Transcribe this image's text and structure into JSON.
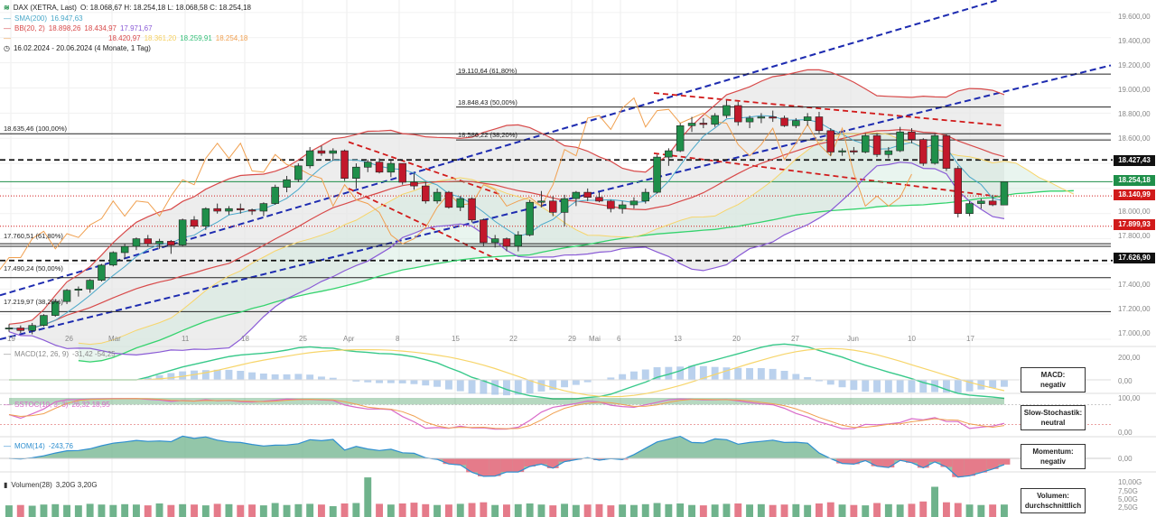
{
  "legend": {
    "title": "DAX (XETRA, Last)",
    "ohlc": "O: 18.068,67  H: 18.254,18  L: 18.068,58  C: 18.254,18",
    "sma": "SMA(200)",
    "sma_val": "16.947,63",
    "bb": "BB(20, 2)",
    "bb_vals": [
      "18.898,26",
      "18.434,97",
      "17.971,67"
    ],
    "ichimoku": [
      "18.420,97",
      "18.361,20",
      "18.259,91",
      "18.254,18"
    ],
    "range": "16.02.2024 - 20.06.2024 (4 Monate, 1 Tag)"
  },
  "panels": {
    "macd_legend": "MACD(12, 26, 9)",
    "macd_vals": "-31,42  -54,25",
    "stoch_legend": "SSTOC(10, 3, 3)",
    "stoch_vals": "26,32  18,95",
    "mom_legend": "MOM(14)",
    "mom_val": "-243,76",
    "vol_legend": "Volumen(28)",
    "vol_vals": "3,20G  3,20G"
  },
  "signals": [
    {
      "label": "MACD:",
      "value": "negativ"
    },
    {
      "label": "Slow-Stochastik:",
      "value": "neutral"
    },
    {
      "label": "Momentum:",
      "value": "negativ"
    },
    {
      "label": "Volumen:",
      "value": "durchschnittlich"
    }
  ],
  "price_tags": [
    {
      "text": "18.427,43",
      "color": "#111111"
    },
    {
      "text": "18.254,18",
      "color": "#1f8f4a"
    },
    {
      "text": "18.140,99",
      "color": "#d11a1a"
    },
    {
      "text": "17.899,93",
      "color": "#d11a1a"
    },
    {
      "text": "17.626,90",
      "color": "#111111"
    }
  ],
  "fib_labels": [
    "19.110,64 (61,80%)",
    "18.848,43 (50,00%)",
    "18.586,22 (38,20%)",
    "18.635,46 (100,00%)",
    "17.760,51 (61,80%)",
    "17.490,24 (50,00%)",
    "17.219,97 (38,20%)"
  ],
  "axes": {
    "price_ticks": [
      "19.600,00",
      "19.400,00",
      "19.200,00",
      "19.000,00",
      "18.800,00",
      "18.600,00",
      "18.400,00",
      "18.200,00",
      "18.000,00",
      "17.800,00",
      "17.600,00",
      "17.400,00",
      "17.200,00",
      "17.000,00"
    ],
    "macd_ticks": [
      "200,00",
      "0,00"
    ],
    "stoch_ticks": [
      "100,00",
      "0,00"
    ],
    "mom_ticks": [
      "0,00"
    ],
    "vol_ticks": [
      "10,00G",
      "7,50G",
      "5,00G",
      "2,50G"
    ],
    "x_ticks": [
      "19",
      "26",
      "Mar",
      "11",
      "18",
      "25",
      "Apr",
      "8",
      "15",
      "22",
      "29",
      "Mai",
      "6",
      "13",
      "20",
      "27",
      "Jun",
      "10",
      "17"
    ]
  },
  "chart_data": {
    "type": "candlestick",
    "symbol": "DAX (XETRA, Last)",
    "ylim": [
      16950,
      19700
    ],
    "candles": [
      [
        17085,
        17120,
        17060,
        17090
      ],
      [
        17090,
        17110,
        17050,
        17070
      ],
      [
        17070,
        17130,
        17040,
        17110
      ],
      [
        17110,
        17200,
        17100,
        17190
      ],
      [
        17190,
        17320,
        17180,
        17300
      ],
      [
        17300,
        17400,
        17280,
        17390
      ],
      [
        17390,
        17420,
        17340,
        17400
      ],
      [
        17400,
        17480,
        17370,
        17470
      ],
      [
        17470,
        17600,
        17460,
        17590
      ],
      [
        17590,
        17700,
        17580,
        17690
      ],
      [
        17690,
        17760,
        17640,
        17740
      ],
      [
        17740,
        17810,
        17710,
        17800
      ],
      [
        17800,
        17830,
        17740,
        17760
      ],
      [
        17760,
        17800,
        17720,
        17780
      ],
      [
        17780,
        17790,
        17680,
        17750
      ],
      [
        17750,
        17960,
        17740,
        17950
      ],
      [
        17950,
        17980,
        17880,
        17900
      ],
      [
        17900,
        18050,
        17870,
        18040
      ],
      [
        18040,
        18080,
        18000,
        18020
      ],
      [
        18020,
        18060,
        17990,
        18040
      ],
      [
        18040,
        18080,
        18000,
        18030
      ],
      [
        18030,
        18040,
        17990,
        18020
      ],
      [
        18020,
        18090,
        17980,
        18080
      ],
      [
        18080,
        18230,
        18070,
        18210
      ],
      [
        18210,
        18300,
        18170,
        18270
      ],
      [
        18270,
        18400,
        18250,
        18380
      ],
      [
        18380,
        18530,
        18360,
        18500
      ],
      [
        18500,
        18540,
        18460,
        18480
      ],
      [
        18480,
        18520,
        18420,
        18500
      ],
      [
        18500,
        18510,
        18260,
        18280
      ],
      [
        18280,
        18400,
        18200,
        18370
      ],
      [
        18370,
        18430,
        18330,
        18410
      ],
      [
        18410,
        18440,
        18320,
        18330
      ],
      [
        18330,
        18420,
        18290,
        18400
      ],
      [
        18400,
        18400,
        18230,
        18250
      ],
      [
        18250,
        18320,
        18190,
        18220
      ],
      [
        18220,
        18250,
        18080,
        18100
      ],
      [
        18100,
        18200,
        18080,
        18170
      ],
      [
        18170,
        18180,
        18040,
        18050
      ],
      [
        18050,
        18140,
        18020,
        18120
      ],
      [
        18120,
        18130,
        17930,
        17950
      ],
      [
        17950,
        17960,
        17740,
        17770
      ],
      [
        17770,
        17830,
        17730,
        17800
      ],
      [
        17800,
        17810,
        17700,
        17740
      ],
      [
        17740,
        17860,
        17700,
        17830
      ],
      [
        17830,
        18110,
        17820,
        18090
      ],
      [
        18090,
        18180,
        18050,
        18100
      ],
      [
        18100,
        18140,
        17980,
        18010
      ],
      [
        18010,
        18150,
        17900,
        18120
      ],
      [
        18120,
        18180,
        18060,
        18170
      ],
      [
        18170,
        18200,
        18100,
        18130
      ],
      [
        18130,
        18170,
        18090,
        18100
      ],
      [
        18100,
        18110,
        18010,
        18040
      ],
      [
        18040,
        18100,
        18000,
        18070
      ],
      [
        18070,
        18130,
        18040,
        18100
      ],
      [
        18100,
        18200,
        18080,
        18170
      ],
      [
        18170,
        18470,
        18160,
        18450
      ],
      [
        18450,
        18520,
        18380,
        18500
      ],
      [
        18500,
        18720,
        18490,
        18700
      ],
      [
        18700,
        18770,
        18650,
        18720
      ],
      [
        18720,
        18760,
        18680,
        18710
      ],
      [
        18710,
        18800,
        18690,
        18780
      ],
      [
        18780,
        18900,
        18760,
        18860
      ],
      [
        18860,
        18890,
        18700,
        18730
      ],
      [
        18730,
        18780,
        18680,
        18760
      ],
      [
        18760,
        18800,
        18720,
        18770
      ],
      [
        18770,
        18820,
        18730,
        18760
      ],
      [
        18760,
        18780,
        18690,
        18700
      ],
      [
        18700,
        18760,
        18680,
        18740
      ],
      [
        18740,
        18800,
        18700,
        18770
      ],
      [
        18770,
        18810,
        18640,
        18660
      ],
      [
        18660,
        18680,
        18460,
        18490
      ],
      [
        18490,
        18520,
        18460,
        18500
      ],
      [
        18500,
        18530,
        18470,
        18490
      ],
      [
        18490,
        18640,
        18480,
        18620
      ],
      [
        18620,
        18640,
        18450,
        18470
      ],
      [
        18470,
        18530,
        18440,
        18500
      ],
      [
        18500,
        18690,
        18490,
        18650
      ],
      [
        18650,
        18680,
        18560,
        18590
      ],
      [
        18590,
        18600,
        18380,
        18400
      ],
      [
        18400,
        18640,
        18390,
        18620
      ],
      [
        18620,
        18630,
        18340,
        18360
      ],
      [
        18360,
        18380,
        17970,
        18000
      ],
      [
        18000,
        18100,
        17980,
        18080
      ],
      [
        18080,
        18120,
        18040,
        18100
      ],
      [
        18100,
        18150,
        18060,
        18070
      ],
      [
        18068.67,
        18254.18,
        18068.58,
        18254.18
      ]
    ],
    "volume_g": [
      3.0,
      3.1,
      2.9,
      3.2,
      3.3,
      3.1,
      3.0,
      3.4,
      3.2,
      3.1,
      3.3,
      3.2,
      3.0,
      3.5,
      3.1,
      3.3,
      3.2,
      3.0,
      3.4,
      3.3,
      3.1,
      3.2,
      3.0,
      3.6,
      3.1,
      3.3,
      3.4,
      3.2,
      2.8,
      3.5,
      3.6,
      3.3,
      3.4,
      3.2,
      3.5,
      3.7,
      3.3,
      3.1,
      3.2,
      3.4,
      3.6,
      3.8,
      3.1,
      3.2,
      3.3,
      3.5,
      3.2,
      3.0,
      3.4,
      3.1,
      3.2,
      3.3,
      3.0,
      3.2,
      3.1,
      3.3,
      3.6,
      3.3,
      3.5,
      3.1,
      3.0,
      3.2,
      3.4,
      3.5,
      3.2,
      3.3,
      3.1,
      3.2,
      3.3,
      3.1,
      3.5,
      3.8,
      3.2,
      3.1,
      3.0,
      3.6,
      3.3,
      3.2,
      3.4,
      4.0,
      7.8,
      3.8,
      3.6,
      3.2,
      3.1,
      3.2,
      3.2
    ],
    "volume_spike": {
      "index": 31,
      "value": 10.2
    },
    "levels": [
      18427.43,
      18140.99,
      17899.93,
      17626.9
    ],
    "series": [
      {
        "name": "SMA(200)",
        "value": 16947.63
      },
      {
        "name": "BB(20, 2)",
        "values": [
          18898.26,
          18434.97,
          17971.67
        ]
      }
    ]
  }
}
